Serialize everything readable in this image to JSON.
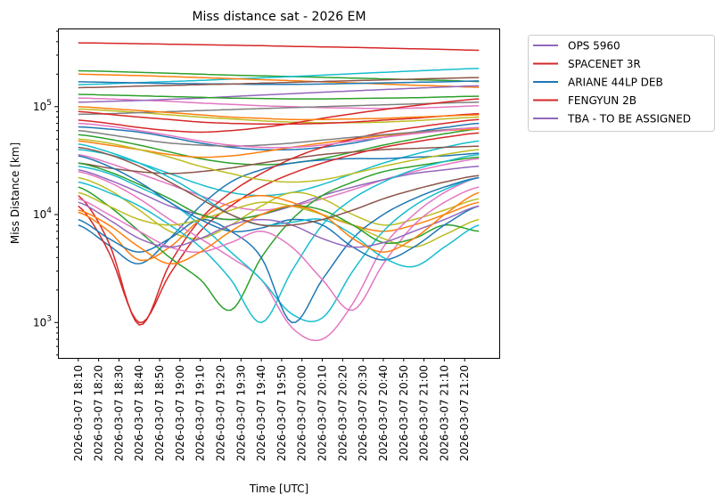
{
  "chart_data": {
    "type": "line",
    "title": "Miss distance sat - 2026 EM",
    "xlabel": "Time [UTC]",
    "ylabel": "Miss Distance [km]",
    "yscale": "log",
    "ylim": [
      470,
      530000
    ],
    "xlim_minutes": [
      -10,
      207
    ],
    "x_origin": "2026-03-07 18:10",
    "yticks": [
      {
        "value": 1000,
        "base": "10",
        "exp": "3"
      },
      {
        "value": 10000,
        "base": "10",
        "exp": "4"
      },
      {
        "value": 100000,
        "base": "10",
        "exp": "5"
      }
    ],
    "xticks": [
      {
        "minute": 0,
        "label": "2026-03-07 18:10"
      },
      {
        "minute": 10,
        "label": "2026-03-07 18:20"
      },
      {
        "minute": 20,
        "label": "2026-03-07 18:30"
      },
      {
        "minute": 30,
        "label": "2026-03-07 18:40"
      },
      {
        "minute": 40,
        "label": "2026-03-07 18:50"
      },
      {
        "minute": 50,
        "label": "2026-03-07 19:00"
      },
      {
        "minute": 60,
        "label": "2026-03-07 19:10"
      },
      {
        "minute": 70,
        "label": "2026-03-07 19:20"
      },
      {
        "minute": 80,
        "label": "2026-03-07 19:30"
      },
      {
        "minute": 90,
        "label": "2026-03-07 19:40"
      },
      {
        "minute": 100,
        "label": "2026-03-07 19:50"
      },
      {
        "minute": 110,
        "label": "2026-03-07 20:00"
      },
      {
        "minute": 120,
        "label": "2026-03-07 20:10"
      },
      {
        "minute": 130,
        "label": "2026-03-07 20:20"
      },
      {
        "minute": 140,
        "label": "2026-03-07 20:30"
      },
      {
        "minute": 150,
        "label": "2026-03-07 20:40"
      },
      {
        "minute": 160,
        "label": "2026-03-07 20:50"
      },
      {
        "minute": 170,
        "label": "2026-03-07 21:00"
      },
      {
        "minute": 180,
        "label": "2026-03-07 21:10"
      },
      {
        "minute": 190,
        "label": "2026-03-07 21:20"
      }
    ],
    "legend_placement": "outside-top-right",
    "legend": [
      {
        "name": "OPS 5960",
        "color": "#9467bd"
      },
      {
        "name": "SPACENET 3R",
        "color": "#d62728"
      },
      {
        "name": "ARIANE 44LP DEB",
        "color": "#1f77b4"
      },
      {
        "name": "FENGYUN 2B",
        "color": "#d62728"
      },
      {
        "name": "TBA - TO BE ASSIGNED",
        "color": "#9467bd"
      }
    ],
    "x_minutes": [
      0,
      15,
      30,
      45,
      60,
      75,
      90,
      105,
      120,
      135,
      150,
      165,
      180,
      197
    ],
    "series": [
      {
        "color": "#d62728",
        "values": [
          390000,
          387000,
          383000,
          379000,
          375000,
          371000,
          367000,
          362000,
          358000,
          354000,
          349000,
          344000,
          339000,
          333000
        ]
      },
      {
        "color": "#2ca02c",
        "values": [
          215000,
          212000,
          208000,
          204000,
          200000,
          196000,
          193000,
          190000,
          187000,
          184000,
          181000,
          178000,
          175000,
          171000
        ]
      },
      {
        "color": "#17becf",
        "values": [
          160000,
          163000,
          167000,
          171000,
          175000,
          180000,
          185000,
          190000,
          196000,
          202000,
          208000,
          214000,
          220000,
          226000
        ]
      },
      {
        "color": "#ff7f0e",
        "values": [
          200000,
          197000,
          194000,
          190000,
          186000,
          182000,
          178000,
          174000,
          170000,
          166000,
          162000,
          158000,
          155000,
          151000
        ]
      },
      {
        "color": "#1f77b4",
        "values": [
          170000,
          168000,
          166000,
          164000,
          163000,
          162000,
          161000,
          161000,
          162000,
          164000,
          166000,
          168000,
          170000,
          173000
        ]
      },
      {
        "color": "#8c564b",
        "values": [
          150000,
          152000,
          155000,
          157000,
          160000,
          162000,
          165000,
          168000,
          171000,
          174000,
          177000,
          180000,
          183000,
          186000
        ]
      },
      {
        "color": "#e377c2",
        "values": [
          120000,
          118000,
          115000,
          112000,
          108000,
          105000,
          102000,
          100000,
          98000,
          97000,
          96000,
          97000,
          99000,
          102000
        ]
      },
      {
        "color": "#9467bd",
        "values": [
          110000,
          112000,
          114000,
          117000,
          120000,
          124000,
          128000,
          132000,
          136000,
          140000,
          144000,
          148000,
          152000,
          156000
        ]
      },
      {
        "color": "#bcbd22",
        "values": [
          95000,
          92000,
          88000,
          84000,
          80000,
          77000,
          74000,
          72000,
          71000,
          71000,
          72000,
          74000,
          77000,
          80000
        ]
      },
      {
        "color": "#7f7f7f",
        "values": [
          85000,
          86000,
          88000,
          90000,
          92000,
          94000,
          96000,
          98000,
          100000,
          102000,
          104000,
          106000,
          108000,
          110000
        ]
      },
      {
        "color": "#d62728",
        "values": [
          75000,
          70000,
          64000,
          60000,
          58000,
          60000,
          64000,
          70000,
          78000,
          86000,
          94000,
          102000,
          110000,
          118000
        ]
      },
      {
        "color": "#1f77b4",
        "values": [
          65000,
          62000,
          58000,
          52000,
          46000,
          42000,
          40000,
          40000,
          42000,
          46000,
          52000,
          58000,
          64000,
          70000
        ]
      },
      {
        "color": "#2ca02c",
        "values": [
          55000,
          50000,
          44000,
          38000,
          33000,
          30000,
          29000,
          30000,
          33000,
          38000,
          44000,
          50000,
          56000,
          62000
        ]
      },
      {
        "color": "#ff7f0e",
        "values": [
          48000,
          44000,
          40000,
          36000,
          34000,
          35000,
          38000,
          42000,
          46000,
          50000,
          54000,
          57000,
          60000,
          62000
        ]
      },
      {
        "color": "#17becf",
        "values": [
          40000,
          36000,
          30000,
          24000,
          19000,
          16000,
          15000,
          16000,
          19000,
          24000,
          30000,
          36000,
          42000,
          48000
        ]
      },
      {
        "color": "#e377c2",
        "values": [
          36000,
          30000,
          24000,
          19000,
          15000,
          12000,
          11000,
          12000,
          14000,
          17000,
          21000,
          25000,
          29000,
          33000
        ]
      },
      {
        "color": "#8c564b",
        "values": [
          30000,
          27000,
          25000,
          24000,
          25000,
          27000,
          30000,
          33000,
          36000,
          38000,
          40000,
          41000,
          42000,
          43000
        ]
      },
      {
        "color": "#9467bd",
        "values": [
          26000,
          21000,
          16000,
          12000,
          10000,
          9000,
          10000,
          12000,
          15000,
          18000,
          21000,
          24000,
          26000,
          28000
        ]
      },
      {
        "color": "#bcbd22",
        "values": [
          22000,
          17000,
          11000,
          7000,
          6000,
          8000,
          12000,
          16000,
          14000,
          10000,
          8000,
          9000,
          11000,
          14000
        ]
      },
      {
        "color": "#1f77b4",
        "values": [
          8000,
          5200,
          3500,
          6000,
          12000,
          20000,
          26000,
          30000,
          32000,
          33000,
          33000,
          34000,
          35000,
          37000
        ]
      },
      {
        "color": "#d62728",
        "values": [
          15000,
          5500,
          950,
          3500,
          9000,
          16000,
          24000,
          33000,
          42000,
          50000,
          58000,
          64000,
          70000,
          76000
        ]
      },
      {
        "color": "#d62728",
        "values": [
          12000,
          4500,
          1000,
          2800,
          7000,
          12000,
          18000,
          24000,
          30000,
          36000,
          42000,
          47000,
          52000,
          57000
        ]
      },
      {
        "color": "#ff7f0e",
        "values": [
          10500,
          7000,
          3800,
          5000,
          9000,
          13000,
          15000,
          13000,
          10000,
          8000,
          7000,
          8000,
          10000,
          13000
        ]
      },
      {
        "color": "#2ca02c",
        "values": [
          18000,
          12000,
          7000,
          4000,
          2500,
          1300,
          4000,
          9000,
          15000,
          20000,
          25000,
          28000,
          31000,
          34000
        ]
      },
      {
        "color": "#17becf",
        "values": [
          20000,
          16000,
          12000,
          8000,
          5000,
          2500,
          1000,
          3000,
          8000,
          14000,
          20000,
          26000,
          31000,
          36000
        ]
      },
      {
        "color": "#e377c2",
        "values": [
          25000,
          20000,
          14000,
          9000,
          6000,
          4000,
          2500,
          900,
          700,
          1500,
          5000,
          10000,
          16000,
          22000
        ]
      },
      {
        "color": "#17becf",
        "values": [
          28000,
          24000,
          18000,
          13000,
          8000,
          4500,
          2500,
          1200,
          1100,
          3000,
          7000,
          12000,
          17000,
          22000
        ]
      },
      {
        "color": "#1f77b4",
        "values": [
          9000,
          6000,
          4500,
          6000,
          9000,
          7000,
          4000,
          1000,
          2500,
          6000,
          10000,
          14000,
          18000,
          22000
        ]
      },
      {
        "color": "#e377c2",
        "values": [
          14000,
          10000,
          7000,
          5000,
          4500,
          5500,
          7000,
          5000,
          2500,
          1300,
          3500,
          8000,
          13000,
          18000
        ]
      },
      {
        "color": "#bcbd22",
        "values": [
          16000,
          12000,
          9000,
          8000,
          9000,
          11000,
          13000,
          12000,
          10000,
          8000,
          6000,
          5000,
          6500,
          9000
        ]
      },
      {
        "color": "#2ca02c",
        "values": [
          30000,
          25000,
          19000,
          14000,
          10000,
          9000,
          10000,
          12000,
          11000,
          8000,
          5500,
          6000,
          8000,
          7000
        ]
      },
      {
        "color": "#1f77b4",
        "values": [
          35000,
          28000,
          20000,
          13000,
          9000,
          7000,
          7500,
          9000,
          8000,
          5000,
          3800,
          5000,
          8000,
          12000
        ]
      },
      {
        "color": "#17becf",
        "values": [
          45000,
          38000,
          30000,
          22000,
          15000,
          10000,
          8000,
          8500,
          9000,
          6500,
          4000,
          3300,
          5000,
          8000
        ]
      },
      {
        "color": "#9467bd",
        "values": [
          13000,
          9000,
          6000,
          5000,
          6000,
          8000,
          9000,
          8000,
          6000,
          5000,
          5500,
          7000,
          9000,
          12000
        ]
      },
      {
        "color": "#ff7f0e",
        "values": [
          11000,
          8000,
          5000,
          3500,
          4500,
          7000,
          10000,
          12000,
          10000,
          6000,
          4500,
          6000,
          10000,
          16000
        ]
      },
      {
        "color": "#7f7f7f",
        "values": [
          60000,
          55000,
          50000,
          46000,
          44000,
          43000,
          44000,
          46000,
          49000,
          52000,
          55000,
          58000,
          61000,
          64000
        ]
      },
      {
        "color": "#d62728",
        "values": [
          90000,
          85000,
          80000,
          76000,
          72000,
          70000,
          69000,
          69000,
          70000,
          72000,
          75000,
          78000,
          82000,
          86000
        ]
      },
      {
        "color": "#2ca02c",
        "values": [
          130000,
          128000,
          126000,
          124000,
          122000,
          120000,
          119000,
          118000,
          118000,
          119000,
          120000,
          121000,
          123000,
          125000
        ]
      },
      {
        "color": "#ff7f0e",
        "values": [
          100000,
          96000,
          92000,
          88000,
          84000,
          80000,
          78000,
          76000,
          76000,
          77000,
          78000,
          80000,
          82000,
          84000
        ]
      },
      {
        "color": "#e377c2",
        "values": [
          70000,
          66000,
          60000,
          54000,
          48000,
          44000,
          42000,
          42000,
          44000,
          48000,
          52000,
          56000,
          60000,
          64000
        ]
      },
      {
        "color": "#bcbd22",
        "values": [
          50000,
          46000,
          40000,
          34000,
          28000,
          24000,
          21000,
          20000,
          21000,
          24000,
          28000,
          32000,
          36000,
          40000
        ]
      },
      {
        "color": "#8c564b",
        "values": [
          42000,
          36000,
          28000,
          20000,
          14000,
          10000,
          8000,
          8000,
          9000,
          11000,
          14000,
          17000,
          20000,
          23000
        ]
      }
    ]
  }
}
